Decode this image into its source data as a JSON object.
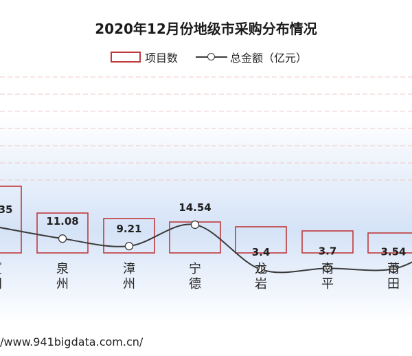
{
  "title": "2020年12月份地级市采购分布情况",
  "legend": {
    "bar_label": "项目数",
    "line_label": "总金额（亿元）"
  },
  "source_text": "/www.941bigdata.com.cn/",
  "colors": {
    "bar_border": "#c0393b",
    "line": "#3a3a3a",
    "grid": "#f0c8c8"
  },
  "chart_data": {
    "type": "bar",
    "categories": [
      "厦门",
      "泉州",
      "漳州",
      "宁德",
      "龙岩",
      "南平",
      "莆田"
    ],
    "category_chars": [
      [
        "厦",
        "门"
      ],
      [
        "泉",
        "州"
      ],
      [
        "漳",
        "州"
      ],
      [
        "宁",
        "德"
      ],
      [
        "龙",
        "岩"
      ],
      [
        "南",
        "平"
      ],
      [
        "莆",
        "田"
      ]
    ],
    "series": [
      {
        "name": "项目数",
        "type": "bar",
        "values": [
          null,
          null,
          null,
          null,
          null,
          null,
          null
        ]
      },
      {
        "name": "总金额（亿元）",
        "type": "line",
        "values": [
          null,
          11.08,
          9.21,
          14.54,
          3.4,
          3.7,
          3.54
        ],
        "labels": [
          "35",
          "11.08",
          "9.21",
          "14.54",
          "3.4",
          "3.7",
          "3.54"
        ]
      }
    ],
    "grid": true,
    "legend_position": "top"
  }
}
